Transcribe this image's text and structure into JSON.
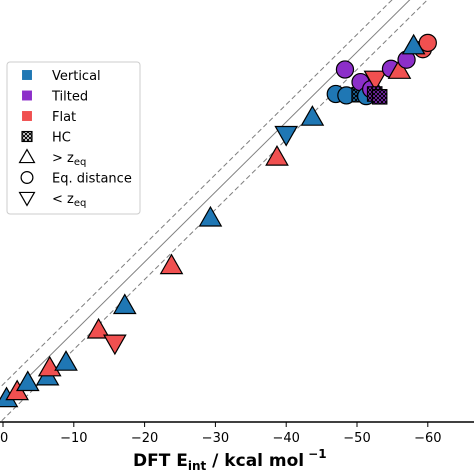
{
  "chart_data": {
    "type": "scatter",
    "xlabel": {
      "main": "DFT E",
      "sub": "int",
      "rest": " / kcal mol",
      "sup": "−1"
    },
    "x_ticks": [
      0,
      -10,
      -20,
      -30,
      -40,
      -50,
      -60
    ],
    "x_tick_labels": [
      "0",
      "−10",
      "−20",
      "−30",
      "−40",
      "−50",
      "−60"
    ],
    "xlim": [
      0,
      -67
    ],
    "ylim": [
      0,
      -67
    ],
    "grid": false,
    "legend_position": "top-left",
    "lines": [
      {
        "role": "parity",
        "style": "solid",
        "color": "#808080",
        "offset": 0
      },
      {
        "role": "upper-bound",
        "style": "dashed",
        "color": "#808080",
        "offset": 2.5
      },
      {
        "role": "lower-bound",
        "style": "dashed",
        "color": "#808080",
        "offset": -2.5
      }
    ],
    "legend": [
      {
        "label": "Vertical",
        "marker": "square",
        "color": "#1f77b4"
      },
      {
        "label": "Tilted",
        "marker": "square",
        "color": "#8c2fc9"
      },
      {
        "label": "Flat",
        "marker": "square",
        "color": "#f05050"
      },
      {
        "label": "HC",
        "marker": "hatched-square",
        "color": "#ffffff"
      },
      {
        "label": "> z",
        "sub": "eq",
        "marker": "triangle-up",
        "color": "#ffffff"
      },
      {
        "label": "Eq. distance",
        "marker": "circle",
        "color": "#ffffff"
      },
      {
        "label": "< z",
        "sub": "eq",
        "marker": "triangle-down",
        "color": "#ffffff"
      }
    ],
    "colors": {
      "Vertical": "#1f77b4",
      "Tilted": "#8c2fc9",
      "Flat": "#f05050"
    },
    "points": [
      {
        "series": "Vertical",
        "marker": "triangle-up",
        "x": -0.5,
        "y": -0.5
      },
      {
        "series": "Flat",
        "marker": "triangle-up",
        "x": -2.0,
        "y": -1.5
      },
      {
        "series": "Vertical",
        "marker": "triangle-up",
        "x": -3.5,
        "y": -2.8
      },
      {
        "series": "Vertical",
        "marker": "triangle-up",
        "x": -6.3,
        "y": -3.6
      },
      {
        "series": "Flat",
        "marker": "triangle-up",
        "x": -6.6,
        "y": -4.9
      },
      {
        "series": "Vertical",
        "marker": "triangle-up",
        "x": -8.9,
        "y": -5.7
      },
      {
        "series": "Flat",
        "marker": "triangle-up",
        "x": -13.5,
        "y": -10.3
      },
      {
        "series": "Flat",
        "marker": "triangle-down",
        "x": -15.8,
        "y": -8.4
      },
      {
        "series": "Vertical",
        "marker": "triangle-up",
        "x": -17.2,
        "y": -13.8
      },
      {
        "series": "Flat",
        "marker": "triangle-up",
        "x": -23.8,
        "y": -19.5
      },
      {
        "series": "Vertical",
        "marker": "triangle-up",
        "x": -29.3,
        "y": -26.3
      },
      {
        "series": "Flat",
        "marker": "triangle-up",
        "x": -38.7,
        "y": -35.0
      },
      {
        "series": "Vertical",
        "marker": "triangle-down",
        "x": -40.0,
        "y": -38.2
      },
      {
        "series": "Vertical",
        "marker": "triangle-up",
        "x": -43.7,
        "y": -40.7
      },
      {
        "series": "Vertical",
        "marker": "circle",
        "x": -47.0,
        "y": -44.0
      },
      {
        "series": "Vertical",
        "marker": "circle",
        "x": -48.5,
        "y": -43.8
      },
      {
        "series": "Tilted",
        "marker": "circle",
        "x": -48.3,
        "y": -47.5
      },
      {
        "series": "Vertical",
        "marker": "hatched-square",
        "x": -50.3,
        "y": -43.9
      },
      {
        "series": "Tilted",
        "marker": "circle",
        "x": -50.5,
        "y": -45.7
      },
      {
        "series": "Vertical",
        "marker": "circle",
        "x": -51.3,
        "y": -43.7
      },
      {
        "series": "Tilted",
        "marker": "circle",
        "x": -52.0,
        "y": -44.7
      },
      {
        "series": "Flat",
        "marker": "triangle-down",
        "x": -52.6,
        "y": -46.1
      },
      {
        "series": "Tilted",
        "marker": "hatched-square",
        "x": -52.5,
        "y": -44.0
      },
      {
        "series": "Tilted",
        "marker": "hatched-square",
        "x": -53.2,
        "y": -43.6
      },
      {
        "series": "Tilted",
        "marker": "circle",
        "x": -54.8,
        "y": -47.6
      },
      {
        "series": "Flat",
        "marker": "triangle-up",
        "x": -56.0,
        "y": -47.4
      },
      {
        "series": "Tilted",
        "marker": "circle",
        "x": -57.0,
        "y": -48.9
      },
      {
        "series": "Flat",
        "marker": "circle",
        "x": -59.3,
        "y": -50.4
      },
      {
        "series": "Flat",
        "marker": "circle",
        "x": -60.0,
        "y": -51.3
      },
      {
        "series": "Vertical",
        "marker": "triangle-up",
        "x": -58.0,
        "y": -50.9
      }
    ]
  }
}
